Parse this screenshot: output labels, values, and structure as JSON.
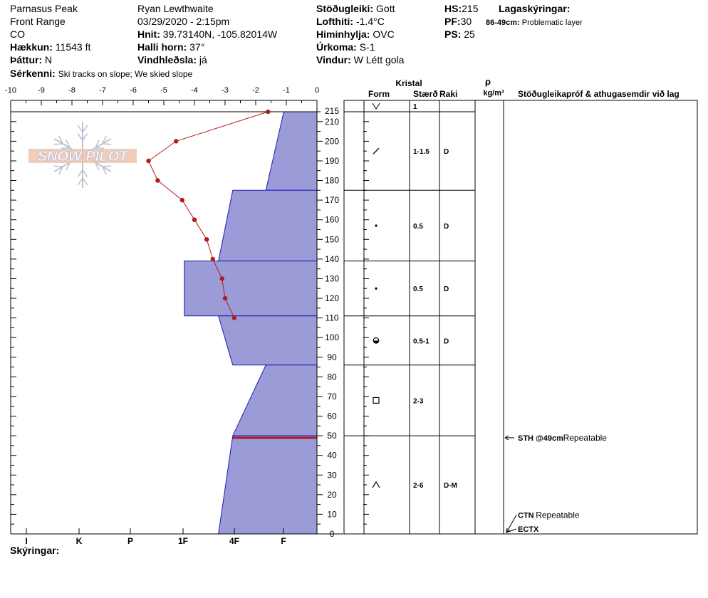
{
  "header": {
    "location": "Parnasus Peak",
    "range": "Front Range",
    "state": "CO",
    "elevation_label": "Hækkun:",
    "elevation_value": "11543 ft",
    "aspect_label": "Þáttur:",
    "aspect_value": "N",
    "features_label": "Sérkenni:",
    "features_value": "Ski tracks on slope; We skied slope",
    "observer": "Ryan Lewthwaite",
    "datetime": "03/29/2020 - 2:15pm",
    "coords_label": "Hnit:",
    "coords_value": "39.73140N, -105.82014W",
    "slope_label": "Halli horn:",
    "slope_value": "37°",
    "wind_loading_label": "Vindhleðsla:",
    "wind_loading_value": "já",
    "stability_label": "Stöðugleiki:",
    "stability_value": "Gott",
    "air_temp_label": "Lofthiti:",
    "air_temp_value": "-1.4°C",
    "sky_label": "Himinhylja:",
    "sky_value": "OVC",
    "precip_label": "Úrkoma:",
    "precip_value": "S-1",
    "wind_label": "Vindur:",
    "wind_value": "W Létt gola",
    "hs_label": "HS:",
    "hs_value": "215",
    "pf_label": "PF:",
    "pf_value": "30",
    "ps_label": "PS:",
    "ps_value": "25",
    "layer_notes_label": "Lagaskýringar:",
    "layer_note_range": "86-49cm:",
    "layer_note_text": "Problematic layer"
  },
  "logo_text": "SNOW PILOT",
  "legend_label": "Skýringar:",
  "columns": {
    "crystal": "Kristal",
    "form": "Form",
    "size": "Stærð",
    "moisture": "Raki",
    "rho": "ρ",
    "rho_unit": "kg/m³",
    "tests": "Stöðugleikapróf & athugasemdir við lag"
  },
  "colors": {
    "hardness_fill": "#9b9bd8",
    "hardness_stroke": "#1a1ab4",
    "temp_line": "#b01c1c",
    "weak_layer": "#b01c1c"
  },
  "chart_data": {
    "type": "line",
    "title": "",
    "xlabel": "",
    "ylabel": "",
    "x_ticks": [
      "-10",
      "-9",
      "-8",
      "-7",
      "-6",
      "-5",
      "-4",
      "-3",
      "-2",
      "-1",
      "0"
    ],
    "xlim": [
      -10,
      0
    ],
    "hardness_ticks": [
      "I",
      "K",
      "P",
      "1F",
      "4F",
      "F"
    ],
    "y_ticks": [
      "0",
      "10",
      "20",
      "30",
      "40",
      "50",
      "60",
      "70",
      "80",
      "90",
      "100",
      "110",
      "120",
      "130",
      "140",
      "150",
      "160",
      "170",
      "180",
      "190",
      "200",
      "210",
      "215"
    ],
    "ylim": [
      0,
      215
    ],
    "temperature_profile": {
      "unit": "°C",
      "points": [
        {
          "height": 215,
          "temp": -1.6
        },
        {
          "height": 200,
          "temp": -4.6
        },
        {
          "height": 190,
          "temp": -5.5
        },
        {
          "height": 180,
          "temp": -5.2
        },
        {
          "height": 170,
          "temp": -4.4
        },
        {
          "height": 160,
          "temp": -4.0
        },
        {
          "height": 150,
          "temp": -3.6
        },
        {
          "height": 140,
          "temp": -3.4
        },
        {
          "height": 130,
          "temp": -3.1
        },
        {
          "height": 120,
          "temp": -3.0
        },
        {
          "height": 110,
          "temp": -2.7
        }
      ]
    },
    "hardness_layers": [
      {
        "bottom": 175,
        "top": 215,
        "h_bottom": 1.0,
        "h_top": 0.65
      },
      {
        "bottom": 139,
        "top": 175,
        "h_bottom": 1.93,
        "h_top": 1.65
      },
      {
        "bottom": 111,
        "top": 139,
        "h_bottom": 2.6,
        "h_top": 2.6
      },
      {
        "bottom": 86,
        "top": 111,
        "h_bottom": 1.65,
        "h_top": 1.93
      },
      {
        "bottom": 50,
        "top": 86,
        "h_bottom": 1.65,
        "h_top": 1.0
      },
      {
        "bottom": 0,
        "top": 50,
        "h_bottom": 1.93,
        "h_top": 1.65
      }
    ],
    "weak_layer_height": 49,
    "layer_table": [
      {
        "bottom": 215,
        "top": 215,
        "form": "v",
        "size": "1",
        "moisture": ""
      },
      {
        "bottom": 175,
        "top": 215,
        "form": "/",
        "size": "1-1.5",
        "moisture": "D"
      },
      {
        "bottom": 139,
        "top": 175,
        "form": "dot",
        "size": "0.5",
        "moisture": "D"
      },
      {
        "bottom": 111,
        "top": 139,
        "form": "dot",
        "size": "0.5",
        "moisture": "D"
      },
      {
        "bottom": 86,
        "top": 111,
        "form": "rounded-facet",
        "size": "0.5-1",
        "moisture": "D"
      },
      {
        "bottom": 50,
        "top": 86,
        "form": "square",
        "size": "2-3",
        "moisture": ""
      },
      {
        "bottom": 0,
        "top": 50,
        "form": "caret",
        "size": "2-6",
        "moisture": "D-M"
      }
    ],
    "tests": [
      {
        "height": 49,
        "code": "STH @49cm",
        "note": "Repeatable"
      },
      {
        "height": 10,
        "code": "CTN",
        "note": "Repeatable"
      },
      {
        "height": 3,
        "code": "ECTX",
        "note": ""
      }
    ]
  }
}
